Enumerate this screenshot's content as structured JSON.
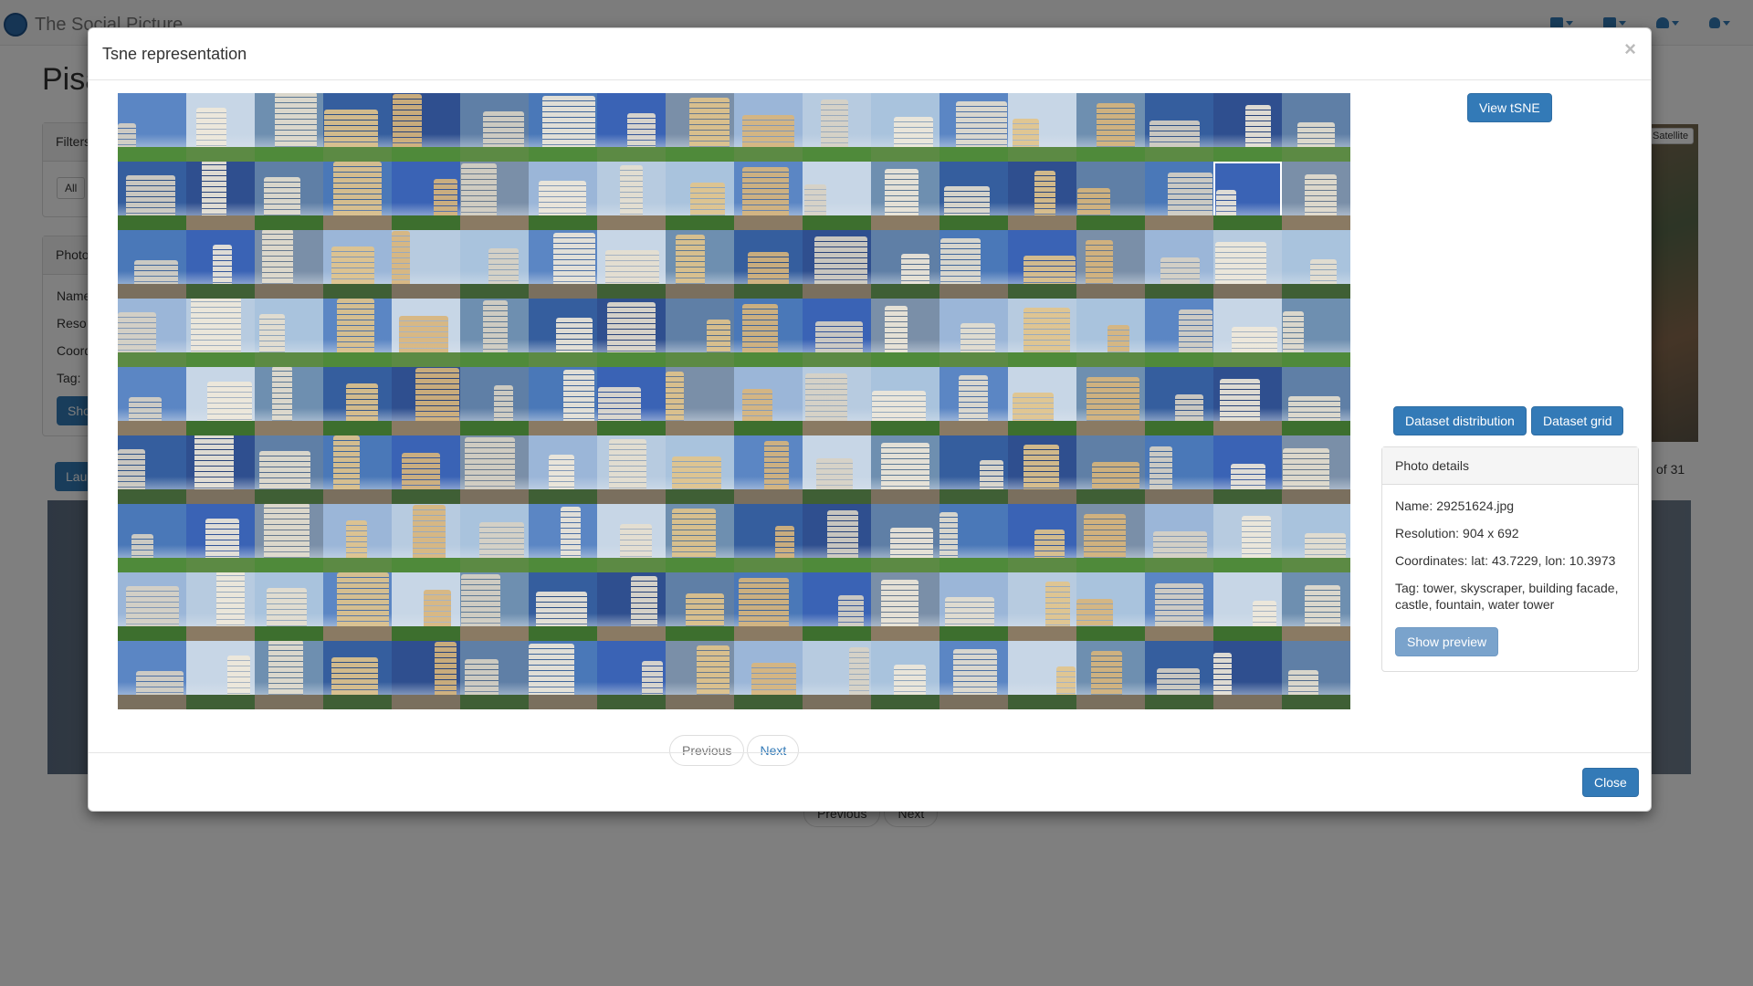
{
  "app": {
    "brand": "The Social Picture"
  },
  "background": {
    "title": "Pisa",
    "filters_label": "Filters",
    "filter_all": "All",
    "photo_panel_label": "Photo",
    "rows": [
      "Name",
      "Reso",
      "Coord",
      "Tag: "
    ],
    "show_button": "Sho",
    "launch_button": "Lau",
    "page_count": "of 31",
    "map_type": "Satellite",
    "pager_prev": "Previous",
    "pager_next": "Next"
  },
  "modal": {
    "title": "Tsne representation",
    "close_x": "×",
    "buttons": {
      "view_tsne": "View tSNE",
      "dataset_distribution": "Dataset distribution",
      "dataset_grid": "Dataset grid",
      "close": "Close"
    },
    "pagination": {
      "prev": "Previous",
      "next": "Next"
    },
    "photo_details": {
      "header": "Photo details",
      "name_label": "Name:",
      "name": "29251624.jpg",
      "resolution_label": "Resolution:",
      "resolution": "904 x 692",
      "coordinates_label": "Coordinates:",
      "coordinates": "lat: 43.7229, lon: 10.3973",
      "tag_label": "Tag:",
      "tag": "tower, skyscraper, building facade, castle, fountain, water tower",
      "show_preview": "Show preview"
    },
    "grid": {
      "rows": 9,
      "cols": 18,
      "selected_index": 34,
      "sky_colors": [
        "#5b86c4",
        "#3a63b5",
        "#6e8fb0",
        "#9bb6d8",
        "#2f4f8f",
        "#a9c3dd",
        "#4a78b8",
        "#c7d6e6",
        "#7a8fa8",
        "#355e9e",
        "#b7cbe0",
        "#5f7fa6"
      ],
      "building_colors": [
        "#d8d2c4",
        "#cfc7b2",
        "#e6dfcf",
        "#bfb49c",
        "#d9b57a",
        "#c9c0b0",
        "#f0e9da",
        "#a89c88",
        "#e2c48a",
        "#b8ad97"
      ],
      "ground_colors": [
        "#4f8a3a",
        "#3d6f2e",
        "#7a6f5e",
        "#5c8a44",
        "#8a7a63",
        "#3f5f35"
      ]
    }
  }
}
